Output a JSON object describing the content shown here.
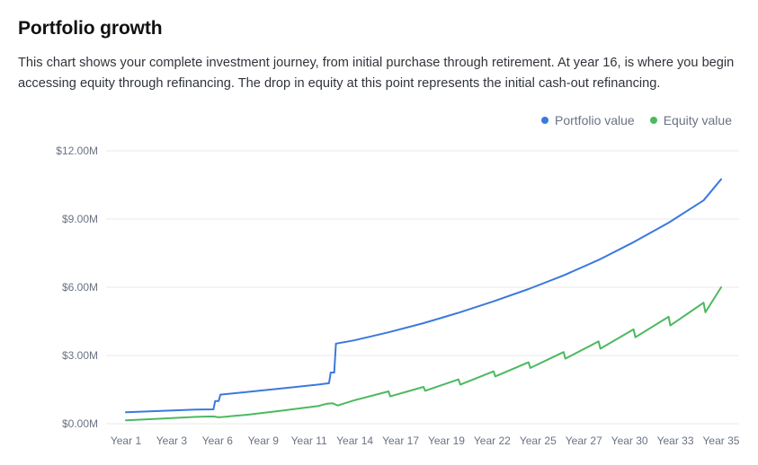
{
  "header": {
    "title": "Portfolio growth",
    "description": "This chart shows your complete investment journey, from initial purchase through retirement. At year 16, is where you begin accessing equity through refinancing. The drop in equity at this point represents the initial cash-out refinancing."
  },
  "colors": {
    "portfolio": "#3b79dc",
    "equity": "#4cb960",
    "grid": "#e8eaee",
    "tick_text": "#697383"
  },
  "chart_data": {
    "type": "line",
    "title": "Portfolio growth",
    "xlabel": "",
    "ylabel": "",
    "legend_position": "top-right",
    "grid": true,
    "x_range": [
      1,
      35
    ],
    "ylim": [
      0,
      12
    ],
    "y_unit": "$M",
    "x_ticks": [
      "Year 1",
      "Year 3",
      "Year 6",
      "Year 9",
      "Year 11",
      "Year 14",
      "Year 17",
      "Year 19",
      "Year 22",
      "Year 25",
      "Year 27",
      "Year 30",
      "Year 33",
      "Year 35"
    ],
    "y_ticks": [
      "$0.00M",
      "$3.00M",
      "$6.00M",
      "$9.00M",
      "$12.00M"
    ],
    "y_tick_values": [
      0,
      3,
      6,
      9,
      12
    ],
    "series": [
      {
        "name": "Portfolio value",
        "points": [
          [
            1,
            0.5
          ],
          [
            3,
            0.56
          ],
          [
            5,
            0.62
          ],
          [
            6,
            0.63
          ],
          [
            6.1,
            1.0
          ],
          [
            6.3,
            1.0
          ],
          [
            6.4,
            1.28
          ],
          [
            8,
            1.4
          ],
          [
            10,
            1.56
          ],
          [
            12,
            1.72
          ],
          [
            12.6,
            1.78
          ],
          [
            12.7,
            2.25
          ],
          [
            12.9,
            2.25
          ],
          [
            13,
            3.52
          ],
          [
            14,
            3.66
          ],
          [
            16,
            4.02
          ],
          [
            18,
            4.42
          ],
          [
            20,
            4.88
          ],
          [
            22,
            5.38
          ],
          [
            24,
            5.92
          ],
          [
            26,
            6.52
          ],
          [
            28,
            7.2
          ],
          [
            30,
            7.98
          ],
          [
            32,
            8.84
          ],
          [
            34,
            9.82
          ],
          [
            35,
            10.75
          ]
        ]
      },
      {
        "name": "Equity value",
        "points": [
          [
            1,
            0.15
          ],
          [
            3,
            0.22
          ],
          [
            5,
            0.3
          ],
          [
            6,
            0.32
          ],
          [
            6.3,
            0.28
          ],
          [
            8,
            0.4
          ],
          [
            10,
            0.58
          ],
          [
            12,
            0.78
          ],
          [
            12.5,
            0.88
          ],
          [
            12.8,
            0.9
          ],
          [
            13.1,
            0.8
          ],
          [
            14,
            1.02
          ],
          [
            16,
            1.42
          ],
          [
            16.1,
            1.2
          ],
          [
            18,
            1.62
          ],
          [
            18.1,
            1.45
          ],
          [
            20,
            1.95
          ],
          [
            20.1,
            1.72
          ],
          [
            22,
            2.3
          ],
          [
            22.1,
            2.08
          ],
          [
            24,
            2.7
          ],
          [
            24.1,
            2.45
          ],
          [
            26,
            3.15
          ],
          [
            26.1,
            2.86
          ],
          [
            28,
            3.62
          ],
          [
            28.1,
            3.3
          ],
          [
            30,
            4.15
          ],
          [
            30.1,
            3.8
          ],
          [
            32,
            4.7
          ],
          [
            32.1,
            4.32
          ],
          [
            34,
            5.32
          ],
          [
            34.1,
            4.9
          ],
          [
            35,
            6.0
          ]
        ]
      }
    ]
  }
}
